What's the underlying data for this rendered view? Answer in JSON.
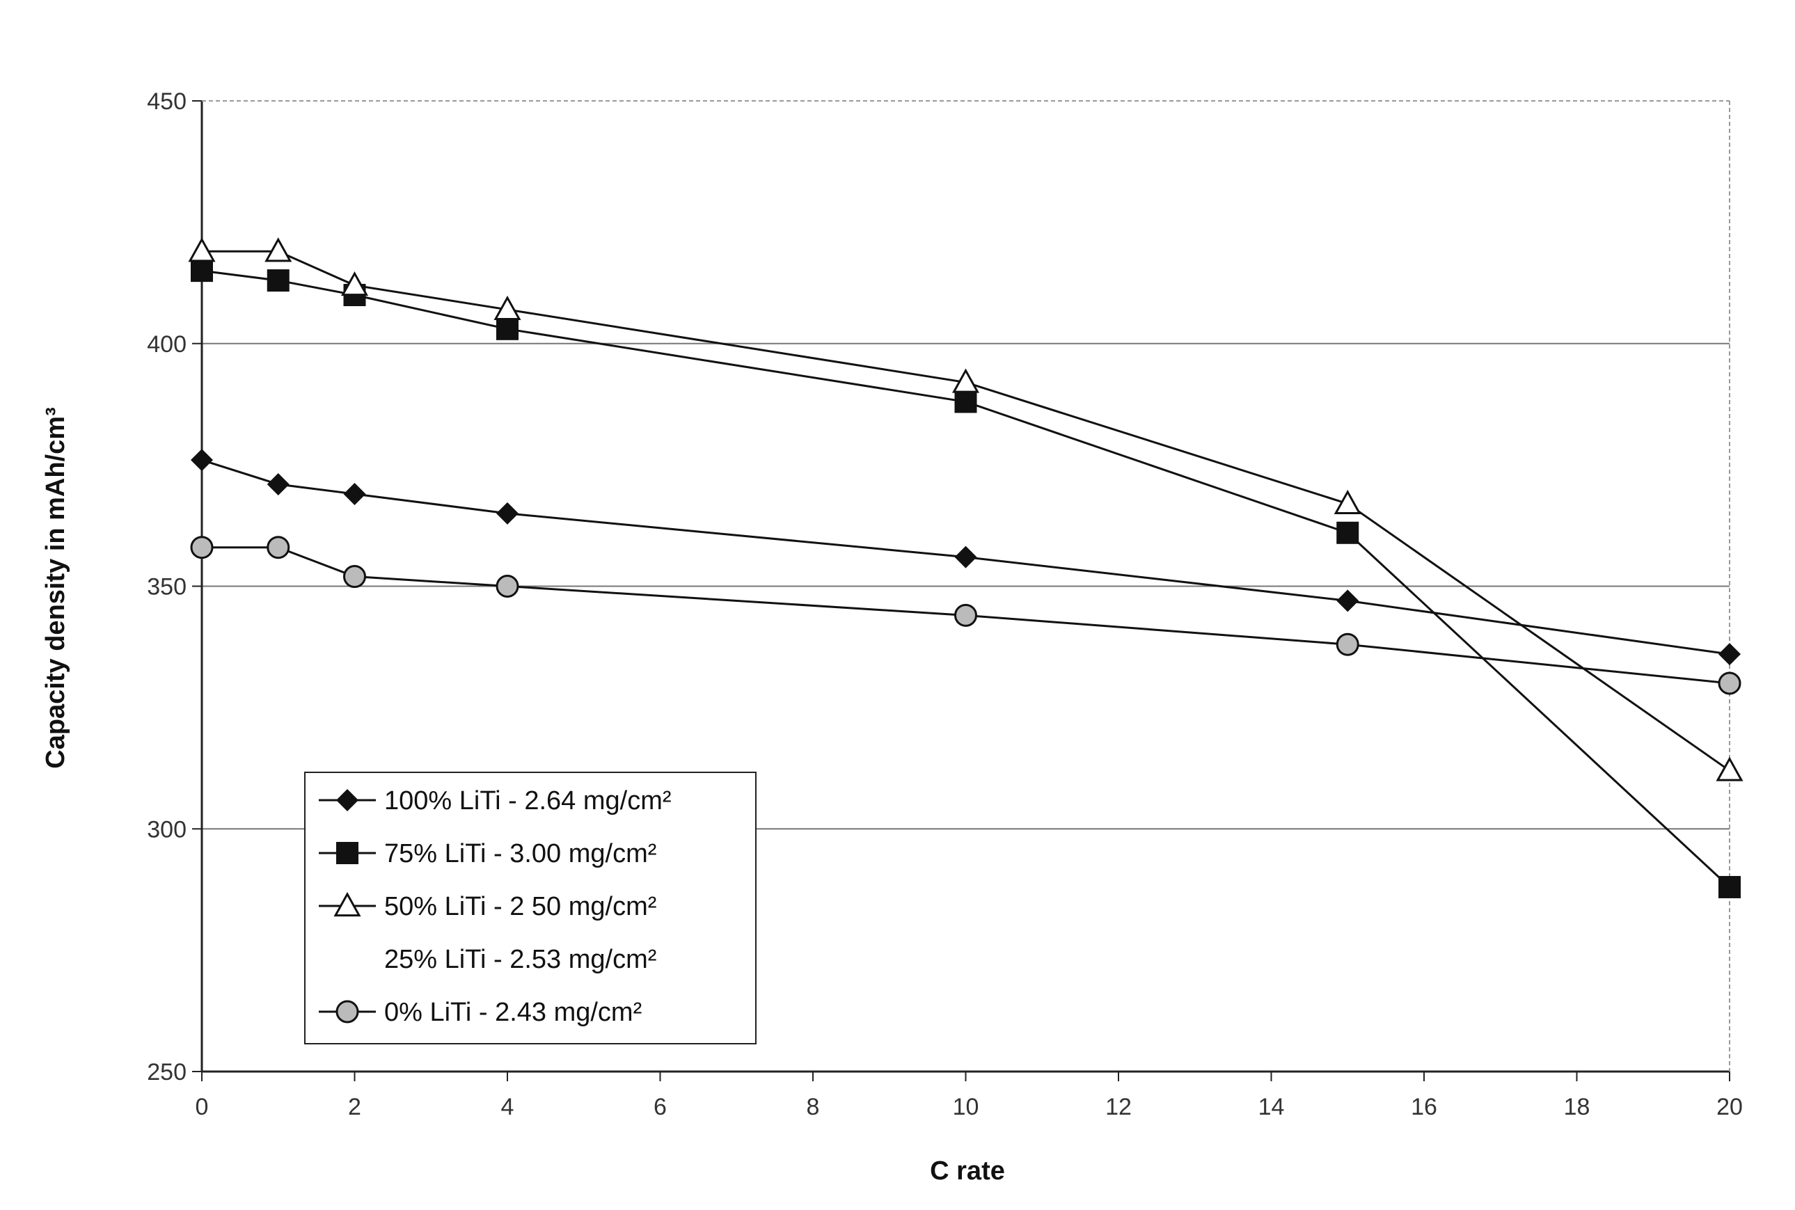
{
  "chart_data": {
    "type": "line",
    "xlabel": "C rate",
    "ylabel": "Capacity density in mAh/cm³",
    "xlim": [
      0,
      20
    ],
    "ylim": [
      250,
      450
    ],
    "x_ticks": [
      "0",
      "2",
      "4",
      "6",
      "8",
      "10",
      "12",
      "14",
      "16",
      "18",
      "20"
    ],
    "y_ticks": [
      "250",
      "300",
      "350",
      "400",
      "450"
    ],
    "grid": "horizontal",
    "legend_position": "bottom-left",
    "series": [
      {
        "name": "100% LiTi - 2.64 mg/cm²",
        "marker": "diamond",
        "x": [
          0,
          1,
          2,
          4,
          10,
          15,
          20
        ],
        "y": [
          376,
          371,
          369,
          365,
          356,
          347,
          336
        ]
      },
      {
        "name": "75% LiTi - 3.00 mg/cm²",
        "marker": "square",
        "x": [
          0,
          1,
          2,
          4,
          10,
          15,
          20
        ],
        "y": [
          415,
          413,
          410,
          403,
          388,
          361,
          288
        ]
      },
      {
        "name": "50% LiTi - 2 50 mg/cm²",
        "marker": "triangle",
        "x": [
          0,
          1,
          2,
          4,
          10,
          15,
          20
        ],
        "y": [
          419,
          419,
          412,
          407,
          392,
          367,
          312
        ]
      },
      {
        "name": "25% LiTi - 2.53 mg/cm²",
        "marker": "none",
        "x": [],
        "y": []
      },
      {
        "name": "0% LiTi - 2.43 mg/cm²",
        "marker": "circle",
        "x": [
          0,
          1,
          2,
          4,
          10,
          15,
          20
        ],
        "y": [
          358,
          358,
          352,
          350,
          344,
          338,
          330
        ]
      }
    ],
    "colors": {
      "line": "#111111",
      "grid": "#777777",
      "frame": "#222222"
    }
  }
}
